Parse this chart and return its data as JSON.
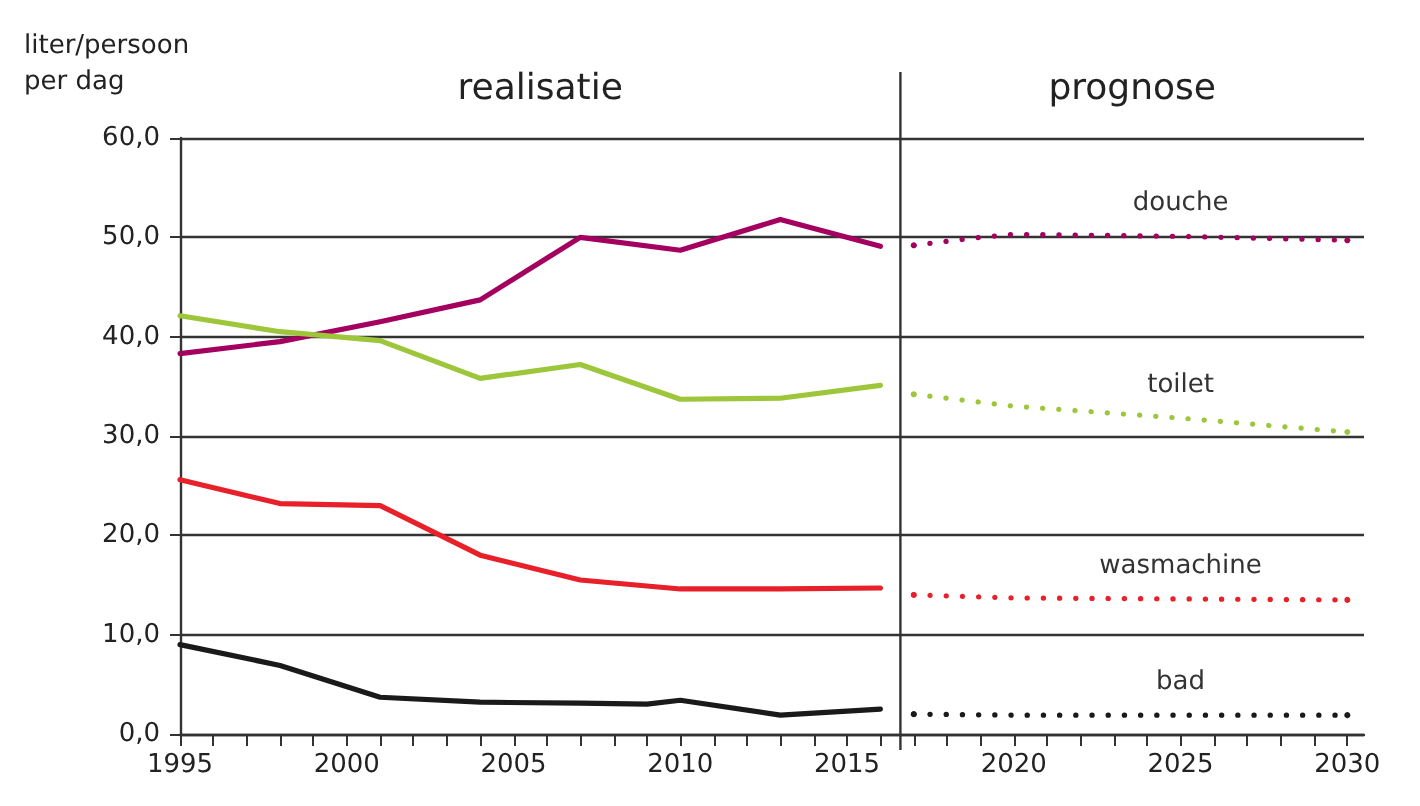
{
  "chart_data": {
    "type": "line",
    "ylabel": "liter/persoon per dag",
    "annotations": [
      "realisatie",
      "prognose"
    ],
    "xlim": [
      1995,
      2030.5
    ],
    "xticks": [
      1995,
      {
        "value": 1996,
        "label": null
      },
      {
        "value": 1997,
        "label": null
      },
      {
        "value": 1998,
        "label": null
      },
      {
        "value": 1999,
        "label": null
      },
      2000,
      {
        "value": 2001,
        "label": null
      },
      {
        "value": 2002,
        "label": null
      },
      {
        "value": 2003,
        "label": null
      },
      {
        "value": 2004,
        "label": null
      },
      2005,
      {
        "value": 2006,
        "label": null
      },
      {
        "value": 2007,
        "label": null
      },
      {
        "value": 2008,
        "label": null
      },
      {
        "value": 2009,
        "label": null
      },
      2010,
      {
        "value": 2011,
        "label": null
      },
      {
        "value": 2012,
        "label": null
      },
      {
        "value": 2013,
        "label": null
      },
      {
        "value": 2014,
        "label": null
      },
      2015,
      {
        "value": 2016,
        "label": null
      },
      {
        "value": 2017,
        "label": null
      },
      {
        "value": 2018,
        "label": null
      },
      {
        "value": 2019,
        "label": null
      },
      2020,
      {
        "value": 2021,
        "label": null
      },
      {
        "value": 2022,
        "label": null
      },
      {
        "value": 2023,
        "label": null
      },
      {
        "value": 2024,
        "label": null
      },
      2025,
      {
        "value": 2026,
        "label": null
      },
      {
        "value": 2027,
        "label": null
      },
      {
        "value": 2028,
        "label": null
      },
      {
        "value": 2029,
        "label": null
      },
      2030
    ],
    "ylim": [
      0,
      60
    ],
    "yticks": [
      {
        "value": 0,
        "label": "0,0"
      },
      {
        "value": 10,
        "label": "10,0"
      },
      {
        "value": 20,
        "label": "20,0"
      },
      {
        "value": 30,
        "label": "30,0"
      },
      {
        "value": 40,
        "label": "40,0"
      },
      {
        "value": 50,
        "label": "50,0"
      },
      {
        "value": 60,
        "label": "60,0"
      }
    ],
    "grid": "y",
    "legend": false,
    "marker": "none",
    "ref_lines": [
      {
        "axis": "x",
        "value": 2016.6,
        "color": "#333333"
      }
    ],
    "series": [
      {
        "color": "#a3005f",
        "line_style": "solid",
        "x": [
          1995,
          1998,
          2001,
          2004,
          2007,
          2010,
          2013,
          2016
        ],
        "values": [
          38.3,
          39.5,
          41.5,
          43.7,
          50.0,
          48.7,
          51.8,
          49.1
        ]
      },
      {
        "color": "#9dc63b",
        "line_style": "solid",
        "x": [
          1995,
          1998,
          2001,
          2004,
          2007,
          2010,
          2013,
          2016
        ],
        "values": [
          42.1,
          40.5,
          39.6,
          35.8,
          37.2,
          33.7,
          33.8,
          35.1
        ]
      },
      {
        "color": "#e8202a",
        "line_style": "solid",
        "x": [
          1995,
          1998,
          2001,
          2004,
          2007,
          2010,
          2013,
          2016
        ],
        "values": [
          25.6,
          23.2,
          23.0,
          18.0,
          15.5,
          14.6,
          14.6,
          14.7
        ]
      },
      {
        "color": "#1a1a1a",
        "line_style": "solid",
        "x": [
          1995,
          1998,
          2001,
          2004,
          2007,
          2009,
          2010,
          2013,
          2016
        ],
        "values": [
          9.0,
          6.9,
          3.7,
          3.2,
          3.1,
          3.0,
          3.4,
          1.9,
          2.5
        ]
      },
      {
        "name": "douche",
        "color": "#a3005f",
        "line_style": "dotted",
        "x": [
          2017,
          2018,
          2019,
          2020,
          2025,
          2030
        ],
        "values": [
          49.2,
          49.6,
          50.0,
          50.3,
          50.1,
          49.7
        ]
      },
      {
        "name": "toilet",
        "color": "#9dc63b",
        "line_style": "dotted",
        "x": [
          2017,
          2020,
          2025,
          2030
        ],
        "values": [
          34.2,
          33.0,
          31.8,
          30.4
        ]
      },
      {
        "name": "wasmachine",
        "color": "#e8202a",
        "line_style": "dotted",
        "x": [
          2017,
          2020,
          2025,
          2030
        ],
        "values": [
          14.0,
          13.7,
          13.6,
          13.5
        ]
      },
      {
        "name": "bad",
        "color": "#1a1a1a",
        "line_style": "dotted",
        "x": [
          2017,
          2020,
          2025,
          2030
        ],
        "values": [
          2.0,
          1.9,
          1.9,
          1.9
        ]
      }
    ]
  }
}
